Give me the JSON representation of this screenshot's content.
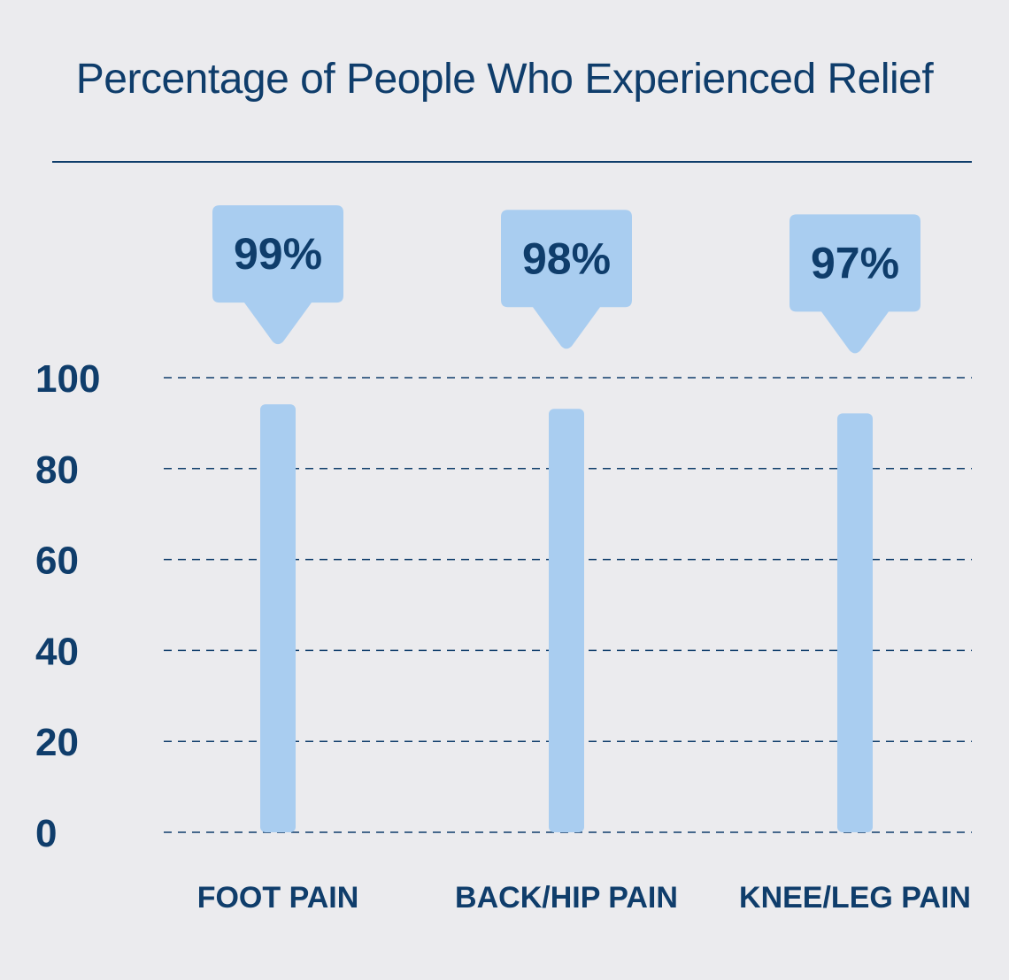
{
  "colors": {
    "background": "#ebebee",
    "text": "#0f3d6b",
    "bar": "#a9cdf0",
    "callout": "#a9cdf0",
    "grid": "#0f3d6b"
  },
  "chart_data": {
    "type": "bar",
    "title": "Percentage of People Who Experienced Relief",
    "categories": [
      "FOOT PAIN",
      "BACK/HIP PAIN",
      "KNEE/LEG PAIN"
    ],
    "values": [
      99,
      98,
      97
    ],
    "data_labels": [
      "99%",
      "98%",
      "97%"
    ],
    "ylim": [
      0,
      100
    ],
    "yticks": [
      0,
      20,
      40,
      60,
      80,
      100
    ],
    "ytick_labels": [
      "0",
      "20",
      "40",
      "60",
      "80",
      "100"
    ],
    "xlabel": "",
    "ylabel": "",
    "grid": "dashed horizontal",
    "legend": "none"
  }
}
